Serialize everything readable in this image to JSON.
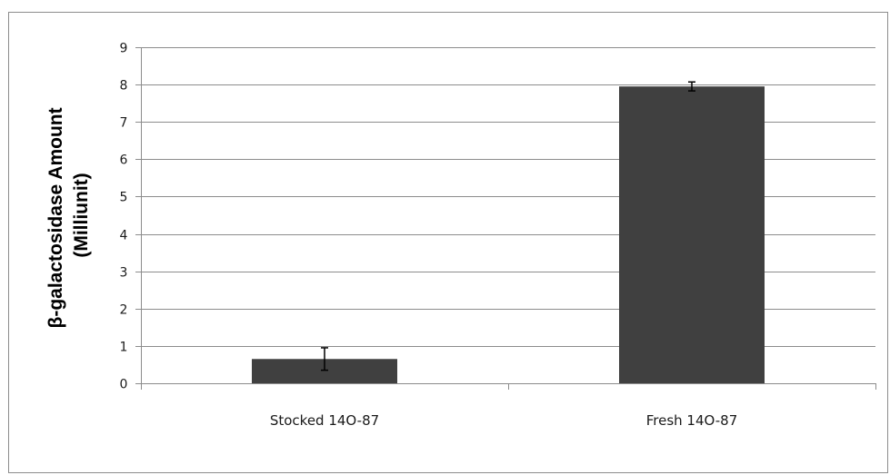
{
  "chart_data": {
    "type": "bar",
    "categories": [
      "Stocked 14O-87",
      "Fresh 14O-87"
    ],
    "values": [
      0.65,
      7.95
    ],
    "error": [
      0.3,
      0.12
    ],
    "title": "",
    "xlabel": "",
    "ylabel_lines": [
      "β-galactosidase Amount",
      "(Milliunit)"
    ],
    "ylim": [
      0,
      9
    ],
    "yticks": [
      0,
      1,
      2,
      3,
      4,
      5,
      6,
      7,
      8,
      9
    ],
    "grid": true,
    "legend": "none",
    "bar_color": "#404040",
    "grid_color": "#8c8c8c"
  }
}
